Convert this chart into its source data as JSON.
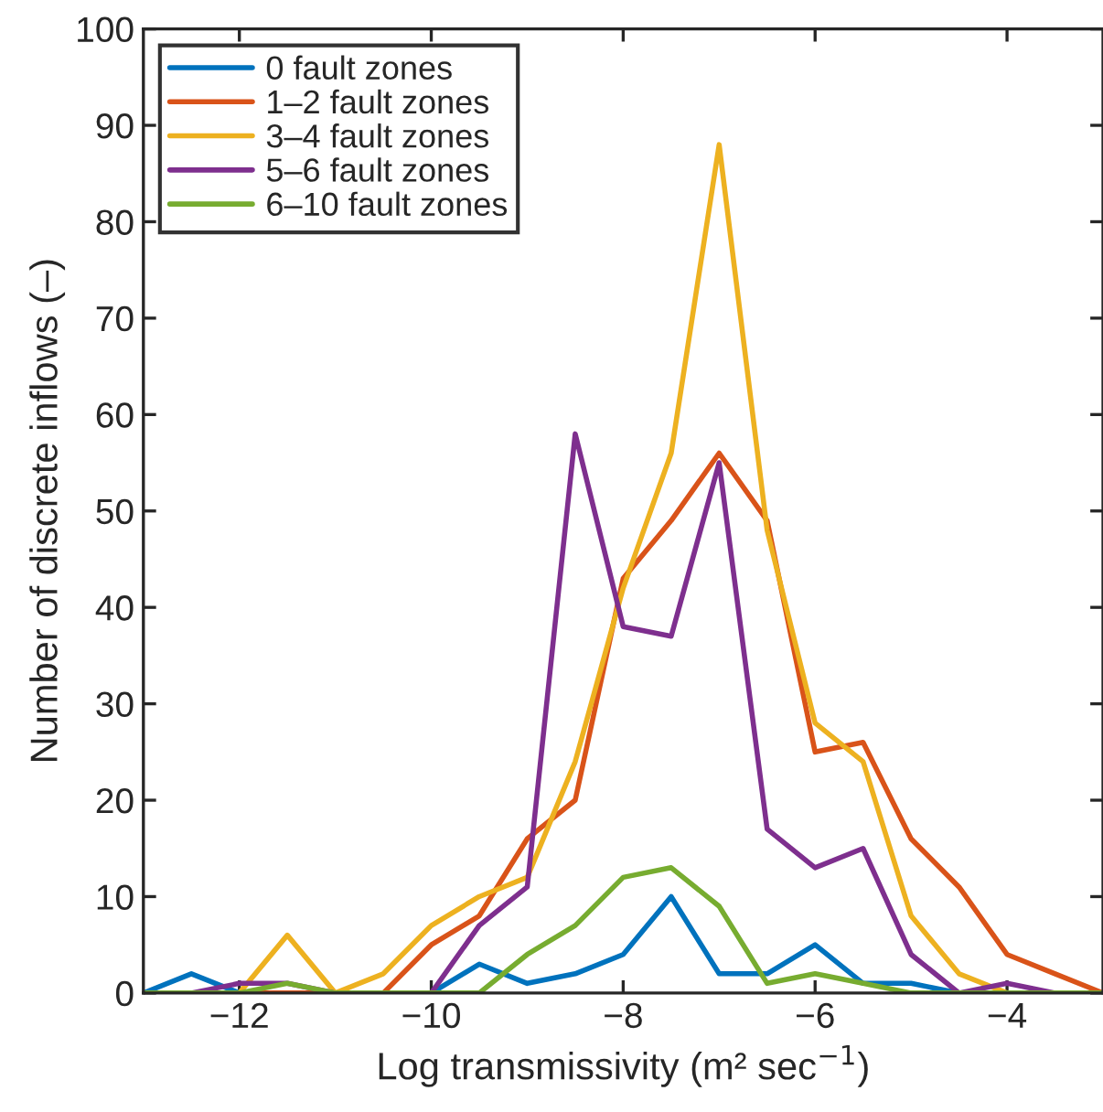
{
  "chart_data": {
    "type": "line",
    "xlabel": "Log transmissivity (m² sec$^{−1}$)",
    "ylabel": "Number of discrete inflows (–)",
    "x": [
      -13,
      -12.5,
      -12,
      -11.5,
      -11,
      -10.5,
      -10,
      -9.5,
      -9,
      -8.5,
      -8,
      -7.5,
      -7,
      -6.5,
      -6,
      -5.5,
      -5,
      -4.5,
      -4,
      -3.5,
      -3
    ],
    "series": [
      {
        "name": "0 fault zones",
        "color": "#0072bd",
        "values": [
          0,
          2,
          0,
          0,
          0,
          0,
          0,
          3,
          1,
          2,
          4,
          10,
          2,
          2,
          5,
          1,
          1,
          0,
          0,
          null,
          null
        ]
      },
      {
        "name": "1–2 fault zones",
        "color": "#d95319",
        "values": [
          0,
          0,
          0,
          0,
          0,
          0,
          5,
          8,
          16,
          20,
          43,
          49,
          56,
          49,
          25,
          26,
          16,
          11,
          4,
          2,
          0
        ]
      },
      {
        "name": "3–4 fault zones",
        "color": "#edb120",
        "values": [
          0,
          0,
          0,
          6,
          0,
          2,
          7,
          10,
          12,
          24,
          42,
          56,
          88,
          48,
          28,
          24,
          8,
          2,
          0,
          0,
          0
        ]
      },
      {
        "name": "5–6 fault zones",
        "color": "#7e2f8e",
        "values": [
          0,
          0,
          1,
          1,
          0,
          0,
          0,
          7,
          11,
          58,
          38,
          37,
          55,
          17,
          13,
          15,
          4,
          0,
          1,
          0,
          0
        ]
      },
      {
        "name": "6–10 fault zones",
        "color": "#77ac30",
        "values": [
          0,
          0,
          0,
          1,
          0,
          0,
          0,
          0,
          4,
          7,
          12,
          13,
          9,
          1,
          2,
          1,
          0,
          0,
          0,
          0,
          0
        ]
      }
    ],
    "xlim": [
      -13,
      -3
    ],
    "ylim": [
      0,
      100
    ],
    "xticks": [
      {
        "value": -12,
        "label": "−12"
      },
      {
        "value": -10,
        "label": "−10"
      },
      {
        "value": -8,
        "label": "−8"
      },
      {
        "value": -6,
        "label": "−6"
      },
      {
        "value": -4,
        "label": "−4"
      }
    ],
    "yticks": [
      0,
      10,
      20,
      30,
      40,
      50,
      60,
      70,
      80,
      90,
      100
    ],
    "grid": false,
    "legend": "top left",
    "marker": "none",
    "line_style": "solid"
  }
}
